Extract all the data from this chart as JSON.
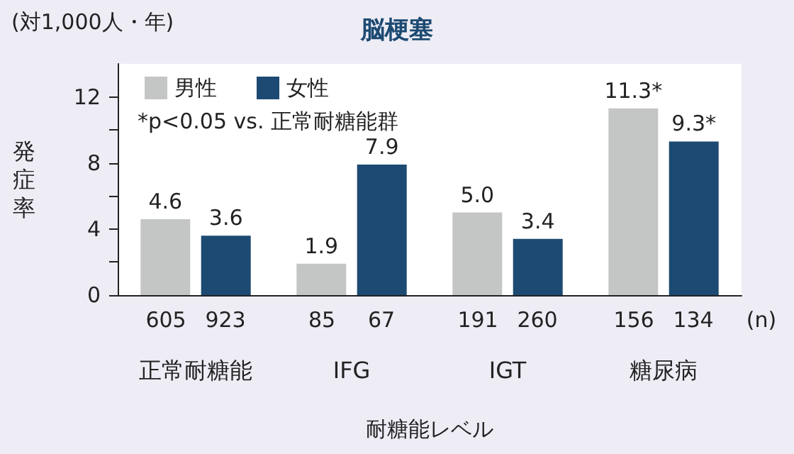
{
  "chart_data": {
    "type": "bar",
    "title": "脳梗塞",
    "xlabel": "耐糖能レベル",
    "ylabel": "発症率",
    "categories": [
      "正常耐糖能",
      "IFG",
      "IGT",
      "糖尿病"
    ],
    "series": [
      {
        "name": "男性",
        "color": "#c4c6c5",
        "values": [
          4.6,
          1.9,
          5.0,
          11.3
        ],
        "value_labels": [
          "4.6",
          "1.9",
          "5.0",
          "11.3*"
        ]
      },
      {
        "name": "女性",
        "color": "#1c4a72",
        "values": [
          3.6,
          7.9,
          3.4,
          9.3
        ],
        "value_labels": [
          "3.6",
          "7.9",
          "3.4",
          "9.3*"
        ]
      }
    ],
    "ylim": [
      0,
      14
    ],
    "yticks": [
      0,
      {
        "value": 2,
        "label": null
      },
      4,
      {
        "value": 6,
        "label": null
      },
      8,
      {
        "value": 10,
        "label": null
      },
      12
    ],
    "annotations": [
      "(対1,000人・年)",
      "*p<0.05 vs. 正常耐糖能群",
      "(n)",
      "605",
      "923",
      "85",
      "67",
      "191",
      "260",
      "156",
      "134"
    ],
    "legend": "top left",
    "grid": false
  }
}
